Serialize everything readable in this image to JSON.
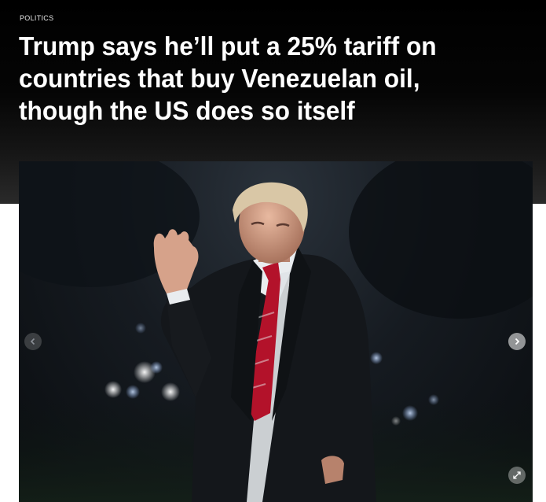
{
  "article": {
    "section": "POLITICS",
    "headline": "Trump says he’ll put a 25% tariff on countries that buy Venezuelan oil, though the US does so itself"
  },
  "gallery": {
    "prev_icon": "chevron-left-icon",
    "next_icon": "chevron-right-icon",
    "expand_icon": "expand-icon"
  },
  "colors": {
    "header_bg": "#000000",
    "headline_text": "#ffffff",
    "tie_red": "#b3122a"
  }
}
